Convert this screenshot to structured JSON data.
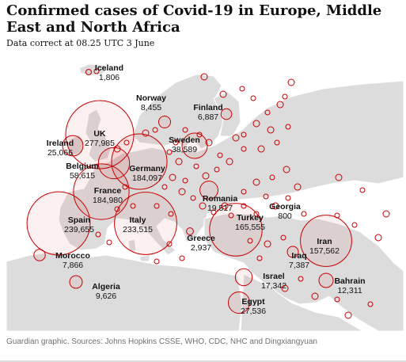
{
  "title": "Confirmed cases of Covid-19 in Europe, Middle East and North Africa",
  "subtitle": "Data correct at 08.25 UTC 3 June",
  "source": "Guardian graphic. Sources: Johns Hopkins CSSE, WHO, CDC, NHC and Dingxiangyuan",
  "colors": {
    "bubble": "#c70000",
    "land": "#dcdcdc",
    "sea": "#ffffff"
  },
  "labeled_countries": [
    {
      "name": "Iceland",
      "cases": "1,806"
    },
    {
      "name": "Norway",
      "cases": "8,455"
    },
    {
      "name": "Finland",
      "cases": "6,887"
    },
    {
      "name": "UK",
      "cases": "277,985"
    },
    {
      "name": "Sweden",
      "cases": "38,589"
    },
    {
      "name": "Ireland",
      "cases": "25,066"
    },
    {
      "name": "Belgium",
      "cases": "58,615"
    },
    {
      "name": "Germany",
      "cases": "184,097"
    },
    {
      "name": "France",
      "cases": "184,980"
    },
    {
      "name": "Romania",
      "cases": "19,517"
    },
    {
      "name": "Georgia",
      "cases": "800"
    },
    {
      "name": "Spain",
      "cases": "239,655"
    },
    {
      "name": "Italy",
      "cases": "233,515"
    },
    {
      "name": "Turkey",
      "cases": "165,555"
    },
    {
      "name": "Greece",
      "cases": "2,937"
    },
    {
      "name": "Iran",
      "cases": "157,562"
    },
    {
      "name": "Morocco",
      "cases": "7,866"
    },
    {
      "name": "Iraq",
      "cases": "7,387"
    },
    {
      "name": "Israel",
      "cases": "17,342"
    },
    {
      "name": "Bahrain",
      "cases": "12,311"
    },
    {
      "name": "Algeria",
      "cases": "9,626"
    },
    {
      "name": "Egypt",
      "cases": "27,536"
    }
  ]
}
